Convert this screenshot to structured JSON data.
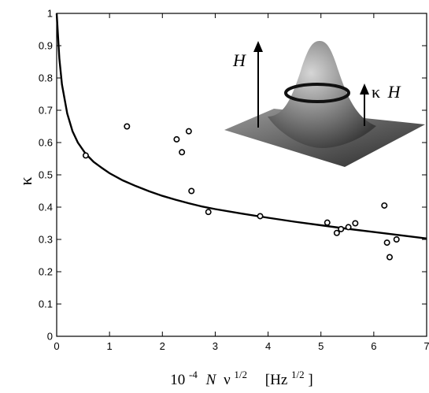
{
  "chart_data": {
    "type": "scatter",
    "title": "",
    "xlabel": {
      "prefix": "10",
      "prefix_exp": "-4",
      "var_n": "N",
      "var_nu": "ν",
      "nu_exp": "1/2",
      "unit": "[Hz",
      "unit_exp": "1/2",
      "unit_close": "]"
    },
    "ylabel": "κ",
    "xlim": [
      0,
      7
    ],
    "ylim": [
      0,
      1
    ],
    "x_ticks": [
      "0",
      "1",
      "2",
      "3",
      "4",
      "5",
      "6",
      "7"
    ],
    "y_ticks": [
      "0",
      "0.1",
      "0.2",
      "0.3",
      "0.4",
      "0.5",
      "0.6",
      "0.7",
      "0.8",
      "0.9",
      "1"
    ],
    "grid": false,
    "series": [
      {
        "kind": "points",
        "marker": "open-circle",
        "points": [
          [
            0.55,
            0.56
          ],
          [
            1.33,
            0.65
          ],
          [
            2.27,
            0.61
          ],
          [
            2.37,
            0.57
          ],
          [
            2.5,
            0.635
          ],
          [
            2.55,
            0.45
          ],
          [
            2.87,
            0.385
          ],
          [
            3.85,
            0.372
          ],
          [
            5.12,
            0.352
          ],
          [
            5.3,
            0.32
          ],
          [
            5.38,
            0.332
          ],
          [
            5.52,
            0.338
          ],
          [
            5.65,
            0.35
          ],
          [
            6.2,
            0.405
          ],
          [
            6.25,
            0.29
          ],
          [
            6.3,
            0.245
          ],
          [
            6.43,
            0.3
          ]
        ]
      },
      {
        "kind": "curve",
        "style": "solid-line",
        "points": [
          [
            0.0,
            1.0
          ],
          [
            0.05,
            0.86
          ],
          [
            0.1,
            0.78
          ],
          [
            0.2,
            0.69
          ],
          [
            0.3,
            0.635
          ],
          [
            0.4,
            0.6
          ],
          [
            0.55,
            0.565
          ],
          [
            0.7,
            0.54
          ],
          [
            0.85,
            0.522
          ],
          [
            1.0,
            0.505
          ],
          [
            1.25,
            0.483
          ],
          [
            1.5,
            0.465
          ],
          [
            1.75,
            0.449
          ],
          [
            2.0,
            0.435
          ],
          [
            2.25,
            0.423
          ],
          [
            2.5,
            0.412
          ],
          [
            2.75,
            0.402
          ],
          [
            3.0,
            0.394
          ],
          [
            3.5,
            0.38
          ],
          [
            4.0,
            0.367
          ],
          [
            4.5,
            0.355
          ],
          [
            5.0,
            0.344
          ],
          [
            5.5,
            0.333
          ],
          [
            6.0,
            0.323
          ],
          [
            6.5,
            0.313
          ],
          [
            7.0,
            0.303
          ]
        ]
      }
    ],
    "inset": {
      "description_labels": {
        "left": "H",
        "right_prefix": "κ",
        "right_var": "H"
      },
      "colors": {
        "surface_light": "#d9d9d9",
        "surface_mid": "#8a8a8a",
        "surface_dark": "#2e2e2e",
        "ring": "#111111"
      }
    }
  }
}
